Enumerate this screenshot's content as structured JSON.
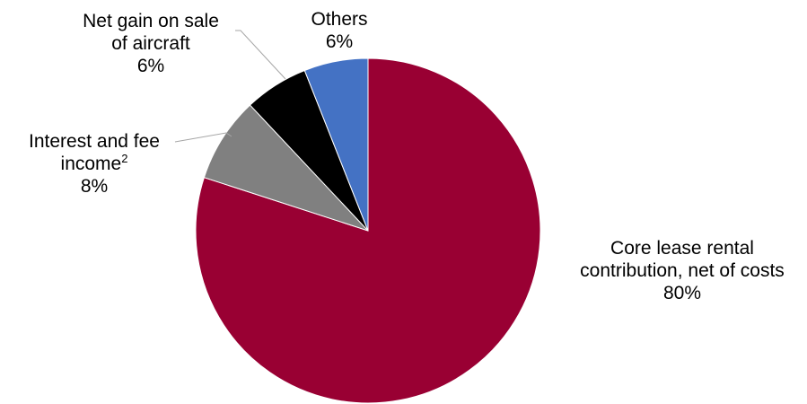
{
  "chart_data": {
    "type": "pie",
    "title": "",
    "slices": [
      {
        "name": "Core lease rental contribution, net of costs",
        "label_lines": [
          "Core lease rental",
          "contribution, net of costs"
        ],
        "value": 80,
        "percent_label": "80%",
        "color": "#990033"
      },
      {
        "name": "Interest and fee income²",
        "label_lines": [
          "Interest and fee",
          "income"
        ],
        "label_superscript": "2",
        "value": 8,
        "percent_label": "8%",
        "color": "#808080"
      },
      {
        "name": "Net gain on sale of aircraft",
        "label_lines": [
          "Net gain on sale",
          "of aircraft"
        ],
        "value": 6,
        "percent_label": "6%",
        "color": "#000000"
      },
      {
        "name": "Others",
        "label_lines": [
          "Others"
        ],
        "value": 6,
        "percent_label": "6%",
        "color": "#4472c4"
      }
    ],
    "start_angle": "12 o'clock",
    "direction": "clockwise",
    "legend": "none (data labels beside slices)"
  }
}
